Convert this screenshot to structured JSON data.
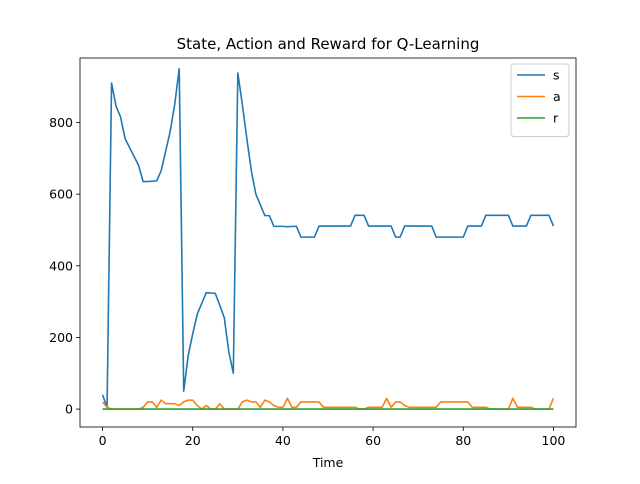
{
  "chart_data": {
    "type": "line",
    "title": "State, Action and Reward for Q-Learning",
    "xlabel": "Time",
    "ylabel": "",
    "xlim": [
      -5,
      105
    ],
    "ylim": [
      -50,
      980
    ],
    "xticks": [
      0,
      20,
      40,
      60,
      80,
      100
    ],
    "yticks": [
      0,
      200,
      400,
      600,
      800
    ],
    "grid": false,
    "legend_position": "top-right",
    "x": [
      0,
      1,
      2,
      3,
      4,
      5,
      6,
      7,
      8,
      9,
      10,
      11,
      12,
      13,
      14,
      15,
      16,
      17,
      18,
      19,
      20,
      21,
      22,
      23,
      24,
      25,
      26,
      27,
      28,
      29,
      30,
      31,
      32,
      33,
      34,
      35,
      36,
      37,
      38,
      39,
      40,
      41,
      42,
      43,
      44,
      45,
      46,
      47,
      48,
      49,
      50,
      51,
      52,
      53,
      54,
      55,
      56,
      57,
      58,
      59,
      60,
      61,
      62,
      63,
      64,
      65,
      66,
      67,
      68,
      69,
      70,
      71,
      72,
      73,
      74,
      75,
      76,
      77,
      78,
      79,
      80,
      81,
      82,
      83,
      84,
      85,
      86,
      87,
      88,
      89,
      90,
      91,
      92,
      93,
      94,
      95,
      96,
      97,
      98,
      99,
      100
    ],
    "series": [
      {
        "name": "s",
        "color": "#1f77b4",
        "values": [
          40,
          5,
          910,
          845,
          815,
          755,
          730,
          705,
          680,
          635,
          635,
          636,
          637,
          665,
          720,
          775,
          850,
          950,
          50,
          150,
          210,
          265,
          295,
          325,
          324,
          323,
          290,
          255,
          160,
          100,
          938,
          850,
          755,
          665,
          600,
          570,
          540,
          540,
          510,
          510,
          510,
          509,
          510,
          510,
          480,
          480,
          480,
          480,
          511,
          511,
          511,
          511,
          511,
          511,
          511,
          511,
          541,
          541,
          541,
          511,
          511,
          511,
          511,
          511,
          511,
          480,
          480,
          511,
          511,
          511,
          511,
          511,
          511,
          511,
          480,
          480,
          480,
          480,
          480,
          480,
          480,
          511,
          511,
          511,
          511,
          541,
          541,
          541,
          541,
          541,
          541,
          511,
          511,
          511,
          511,
          541,
          541,
          541,
          541,
          541,
          511
        ]
      },
      {
        "name": "a",
        "color": "#ff7f0e",
        "values": [
          20,
          5,
          0,
          0,
          0,
          0,
          0,
          0,
          0,
          5,
          20,
          20,
          5,
          25,
          15,
          15,
          15,
          10,
          20,
          25,
          25,
          10,
          0,
          10,
          0,
          0,
          15,
          0,
          0,
          0,
          0,
          20,
          25,
          20,
          20,
          5,
          25,
          20,
          10,
          5,
          5,
          30,
          5,
          5,
          20,
          20,
          20,
          20,
          20,
          5,
          5,
          5,
          5,
          5,
          5,
          5,
          5,
          0,
          0,
          5,
          5,
          5,
          5,
          30,
          5,
          20,
          20,
          10,
          5,
          5,
          5,
          5,
          5,
          5,
          5,
          20,
          20,
          20,
          20,
          20,
          20,
          20,
          5,
          5,
          5,
          5,
          0,
          0,
          0,
          0,
          0,
          30,
          5,
          5,
          5,
          5,
          0,
          0,
          0,
          0,
          30
        ]
      },
      {
        "name": "r",
        "color": "#2ca02c",
        "values": [
          0,
          0,
          0,
          0,
          0,
          0,
          0,
          0,
          0,
          0,
          0,
          0,
          0,
          0,
          0,
          0,
          0,
          0,
          0,
          0,
          0,
          0,
          0,
          0,
          0,
          0,
          0,
          0,
          0,
          0,
          0,
          0,
          0,
          0,
          0,
          0,
          0,
          0,
          0,
          0,
          0,
          0,
          0,
          0,
          0,
          0,
          0,
          0,
          0,
          0,
          0,
          0,
          0,
          0,
          0,
          0,
          0,
          0,
          0,
          0,
          0,
          0,
          0,
          0,
          0,
          0,
          0,
          0,
          0,
          0,
          0,
          0,
          0,
          0,
          0,
          0,
          0,
          0,
          0,
          0,
          0,
          0,
          0,
          0,
          0,
          0,
          0,
          0,
          0,
          0,
          0,
          0,
          0,
          0,
          0,
          0,
          0,
          0,
          0,
          0,
          0
        ]
      }
    ]
  }
}
